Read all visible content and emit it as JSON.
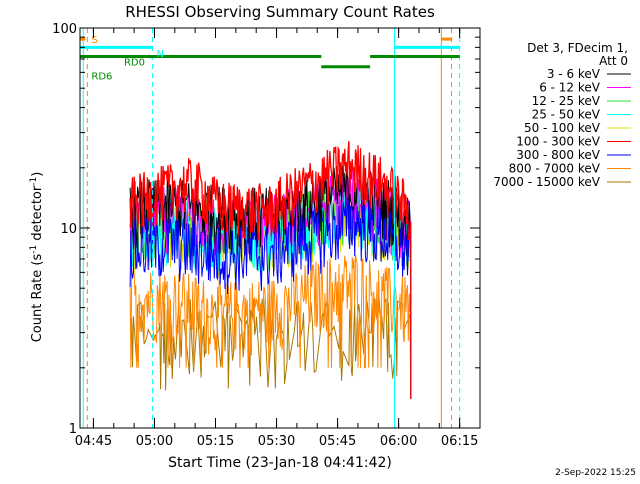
{
  "chart_data": {
    "type": "line",
    "title": "RHESSI Observing Summary Count Rates",
    "xlabel": "Start Time (23-Jan-18 04:41:42)",
    "ylabel": "Count Rate (s⁻¹ detector⁻¹)",
    "ylabel_parts": {
      "main": "Count Rate (s",
      "exp1": "-1",
      "mid": " detector",
      "exp2": "-1",
      "end": ")"
    },
    "yscale": "log",
    "ylim": [
      1,
      100
    ],
    "y_ticks": [
      {
        "value": 1,
        "label": "1"
      },
      {
        "value": 10,
        "label": "10"
      },
      {
        "value": 100,
        "label": "100"
      }
    ],
    "xlim": [
      "04:41:42",
      "06:20:00"
    ],
    "x_ticks": [
      {
        "value": "04:45",
        "label": "04:45"
      },
      {
        "value": "05:00",
        "label": "05:00"
      },
      {
        "value": "05:15",
        "label": "05:15"
      },
      {
        "value": "05:30",
        "label": "05:30"
      },
      {
        "value": "05:45",
        "label": "05:45"
      },
      {
        "value": "06:00",
        "label": "06:00"
      },
      {
        "value": "06:15",
        "label": "06:15"
      }
    ],
    "legend": {
      "placement": "right",
      "header": [
        "Det 3, FDecim 1,",
        "Att 0"
      ],
      "items": [
        {
          "label": "3 - 6 keV",
          "color": "#000000"
        },
        {
          "label": "6 - 12 keV",
          "color": "#ff00ff"
        },
        {
          "label": "12 - 25 keV",
          "color": "#33dd33"
        },
        {
          "label": "25 - 50 keV",
          "color": "#00ffff"
        },
        {
          "label": "50 - 100 keV",
          "color": "#dddd00"
        },
        {
          "label": "100 - 300 keV",
          "color": "#ff0000"
        },
        {
          "label": "300 - 800 keV",
          "color": "#0000ff"
        },
        {
          "label": "800 - 7000 keV",
          "color": "#ff8800"
        },
        {
          "label": "7000 - 15000 keV",
          "color": "#aa7700"
        }
      ]
    },
    "series": [
      {
        "name": "3 - 6 keV",
        "color": "#000000",
        "x_start": "04:54",
        "x_end": "06:03",
        "base": [
          [
            0,
            12.5
          ],
          [
            0.15,
            13
          ],
          [
            0.3,
            12
          ],
          [
            0.5,
            11.5
          ],
          [
            0.68,
            14
          ],
          [
            0.8,
            16
          ],
          [
            0.92,
            13
          ],
          [
            1,
            10.5
          ]
        ]
      },
      {
        "name": "6 - 12 keV",
        "color": "#ff00ff",
        "x_start": "04:54",
        "x_end": "06:03",
        "base": [
          [
            0,
            11.5
          ],
          [
            0.15,
            12
          ],
          [
            0.3,
            11
          ],
          [
            0.5,
            10.5
          ],
          [
            0.68,
            13
          ],
          [
            0.8,
            15
          ],
          [
            0.92,
            12
          ],
          [
            1,
            10
          ]
        ]
      },
      {
        "name": "12 - 25 keV",
        "color": "#33dd33",
        "x_start": "04:54",
        "x_end": "06:03",
        "base": [
          [
            0,
            10.5
          ],
          [
            0.15,
            11
          ],
          [
            0.3,
            10
          ],
          [
            0.5,
            9.5
          ],
          [
            0.68,
            12
          ],
          [
            0.8,
            14
          ],
          [
            0.92,
            11
          ],
          [
            1,
            9
          ]
        ]
      },
      {
        "name": "25 - 50 keV",
        "color": "#00ffff",
        "x_start": "04:54",
        "x_end": "06:03",
        "base": [
          [
            0,
            10
          ],
          [
            0.15,
            10.5
          ],
          [
            0.3,
            9.5
          ],
          [
            0.5,
            9.5
          ],
          [
            0.68,
            11.5
          ],
          [
            0.8,
            13
          ],
          [
            0.92,
            11
          ],
          [
            1,
            9
          ]
        ]
      },
      {
        "name": "50 - 100 keV",
        "color": "#dddd00",
        "x_start": "04:54",
        "x_end": "06:03",
        "base": [
          [
            0,
            9.5
          ],
          [
            0.15,
            10
          ],
          [
            0.3,
            9
          ],
          [
            0.5,
            9
          ],
          [
            0.68,
            11
          ],
          [
            0.8,
            12.5
          ],
          [
            0.92,
            10.5
          ],
          [
            1,
            8.5
          ]
        ]
      },
      {
        "name": "100 - 300 keV",
        "color": "#ff0000",
        "x_start": "04:54",
        "x_end": "06:03",
        "base": [
          [
            0,
            13.5
          ],
          [
            0.12,
            15.5
          ],
          [
            0.22,
            17
          ],
          [
            0.32,
            13
          ],
          [
            0.5,
            12.5
          ],
          [
            0.65,
            17
          ],
          [
            0.78,
            21
          ],
          [
            0.9,
            17
          ],
          [
            1,
            12
          ]
        ]
      },
      {
        "name": "300 - 800 keV",
        "color": "#0000ff",
        "x_start": "04:54",
        "x_end": "06:03",
        "base": [
          [
            0,
            8
          ],
          [
            0.15,
            8.5
          ],
          [
            0.3,
            7.5
          ],
          [
            0.5,
            7.5
          ],
          [
            0.68,
            9.5
          ],
          [
            0.8,
            11
          ],
          [
            0.92,
            9
          ],
          [
            1,
            7.5
          ]
        ]
      },
      {
        "name": "800 - 7000 keV",
        "color": "#ff8800",
        "x_start": "04:54",
        "x_end": "06:03",
        "base": [
          [
            0,
            4.5
          ],
          [
            0.15,
            4.5
          ],
          [
            0.3,
            3.8
          ],
          [
            0.5,
            4
          ],
          [
            0.68,
            5
          ],
          [
            0.8,
            5.5
          ],
          [
            0.92,
            4.5
          ],
          [
            1,
            4
          ]
        ]
      },
      {
        "name": "7000 - 15000 keV",
        "color": "#aa7700",
        "x_start": "04:54",
        "x_end": "06:03",
        "base": [
          [
            0,
            3
          ],
          [
            0.5,
            3
          ],
          [
            1,
            3
          ]
        ]
      }
    ],
    "annotations": {
      "texts": [
        {
          "label": "S",
          "color": "#ff8800",
          "at": "04:44:30",
          "y": 88
        },
        {
          "label": "N",
          "color": "#00ffff",
          "at": "05:00:30",
          "y": 75
        },
        {
          "label": "RD0",
          "color": "#008800",
          "at": "04:52:30",
          "y": 68
        },
        {
          "label": "RD6",
          "color": "#008800",
          "at": "04:44:30",
          "y": 58
        }
      ],
      "vlines": [
        {
          "at": "04:42:30",
          "color": "#00ffff",
          "dash": false
        },
        {
          "at": "04:43:30",
          "color": "#ff8800",
          "dash": true
        },
        {
          "at": "04:59:30",
          "color": "#00ffff",
          "dash": true
        },
        {
          "at": "05:59:00",
          "color": "#00ffff",
          "dash": false
        },
        {
          "at": "06:10:30",
          "color": "#ff8800",
          "dash": false
        },
        {
          "at": "06:13:00",
          "color": "#ff8800",
          "dash": true
        },
        {
          "at": "06:15:00",
          "color": "#00ffff",
          "dash": true
        }
      ],
      "hbars": [
        {
          "x0": "04:41:42",
          "x1": "04:43:00",
          "y": 88,
          "color": "#ff8800",
          "width": 3
        },
        {
          "x0": "06:10:30",
          "x1": "06:13:00",
          "y": 88,
          "color": "#ff8800",
          "width": 3
        },
        {
          "x0": "04:41:42",
          "x1": "04:59:30",
          "y": 80,
          "color": "#00ffff",
          "width": 3
        },
        {
          "x0": "05:59:00",
          "x1": "06:15:00",
          "y": 80,
          "color": "#00ffff",
          "width": 3
        },
        {
          "x0": "04:41:42",
          "x1": "05:41:00",
          "y": 72,
          "color": "#008800",
          "width": 3
        },
        {
          "x0": "05:41:00",
          "x1": "05:53:00",
          "y": 64,
          "color": "#008800",
          "width": 3
        },
        {
          "x0": "05:53:00",
          "x1": "06:15:00",
          "y": 72,
          "color": "#008800",
          "width": 3
        }
      ]
    }
  },
  "footer": {
    "date": "2-Sep-2022 15:25"
  }
}
